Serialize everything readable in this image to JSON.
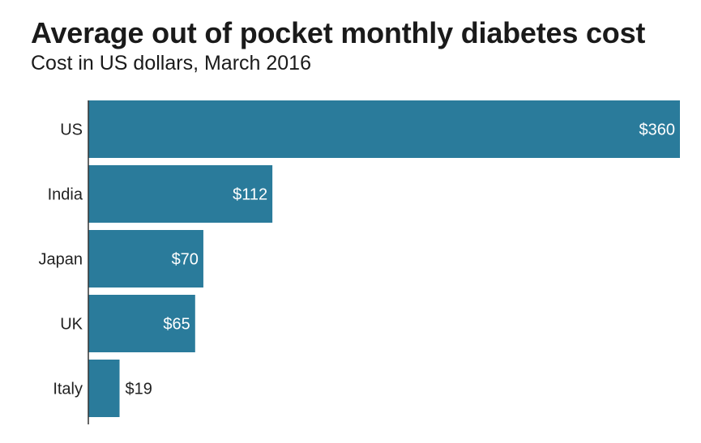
{
  "title": "Average out of pocket monthly diabetes cost",
  "subtitle": "Cost in US dollars, March 2016",
  "colors": {
    "bar": "#2a7b9b",
    "axis": "#333333"
  },
  "chart_data": {
    "type": "bar",
    "orientation": "horizontal",
    "categories": [
      "US",
      "India",
      "Japan",
      "UK",
      "Italy"
    ],
    "values": [
      360,
      112,
      70,
      65,
      19
    ],
    "value_labels": [
      "$360",
      "$112",
      "$70",
      "$65",
      "$19"
    ],
    "unit": "US dollars",
    "xlim": [
      0,
      360
    ],
    "grid": false,
    "legend": "none"
  }
}
